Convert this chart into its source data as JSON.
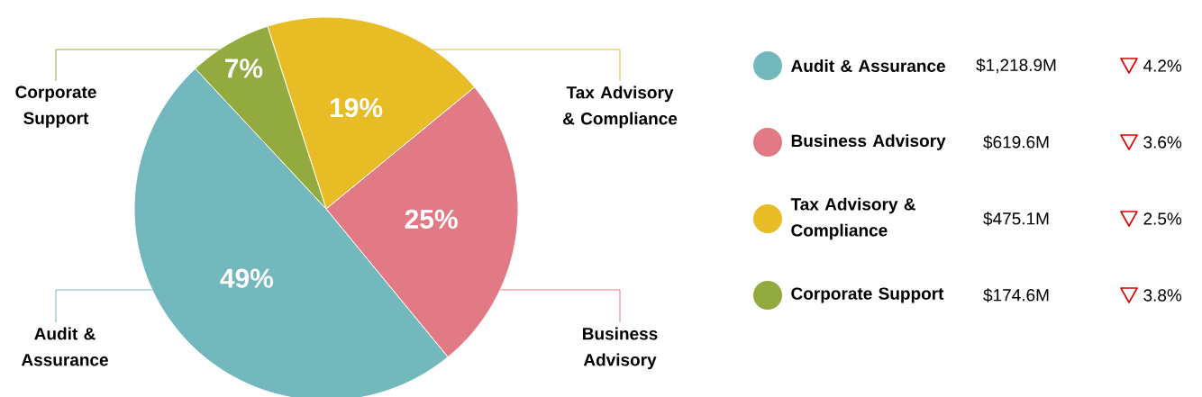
{
  "chart_data": {
    "type": "pie",
    "categories": [
      "Audit & Assurance",
      "Business Advisory",
      "Tax Advisory & Compliance",
      "Corporate Support"
    ],
    "values": [
      49,
      25,
      19,
      7
    ],
    "value_labels": [
      "49%",
      "25%",
      "19%",
      "7%"
    ],
    "colors": [
      "#72b8bc",
      "#e27a85",
      "#e8bc25",
      "#93aa3f"
    ],
    "legend": "right",
    "annotations": [
      "$1,218.9M",
      "4.2%",
      "$619.6M",
      "3.6%",
      "$475.1M",
      "2.5%",
      "$174.6M",
      "3.8%"
    ]
  }
}
